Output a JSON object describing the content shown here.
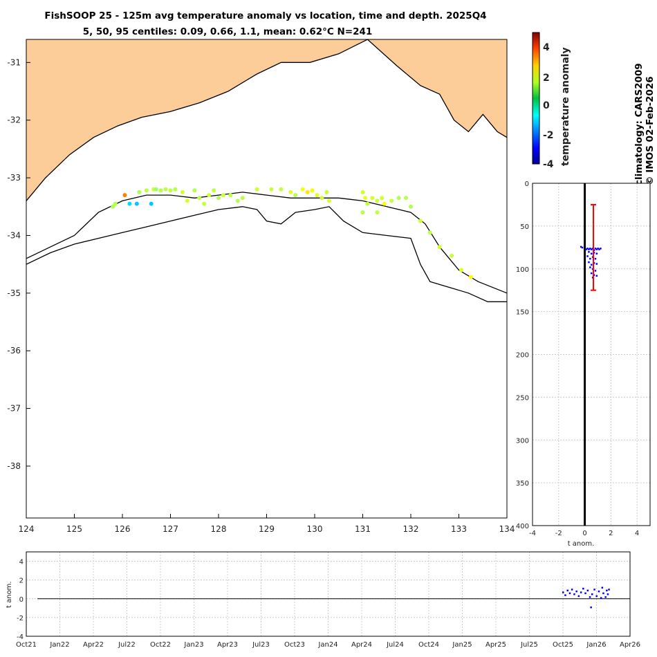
{
  "figure": {
    "title_line1": "FishSOOP 25 - 125m avg temperature anomaly vs location, time and depth. 2025Q4",
    "title_line2": "5, 50, 95 centiles: 0.09, 0.66, 1.1, mean: 0.62°C N=241",
    "right_note_1": "climatology: CARS2009",
    "right_note_2": "© IMOS 02-Feb-2026",
    "colorbar_label": "temperature anomaly",
    "colorbar_ticks": [
      "4",
      "2",
      "0",
      "-2",
      "-4"
    ],
    "colors": {
      "land": "#fccc99",
      "mean_line": "#000000",
      "error_bar": "#ff0000",
      "profile_points": "#0000ff"
    }
  },
  "chart_data": [
    {
      "type": "scatter",
      "name": "map",
      "xlim": [
        124,
        134
      ],
      "ylim": [
        -38.9,
        -30.6
      ],
      "xticks": [
        "124",
        "125",
        "126",
        "127",
        "128",
        "129",
        "130",
        "131",
        "132",
        "133",
        "134"
      ],
      "yticks": [
        "-31",
        "-32",
        "-33",
        "-34",
        "-35",
        "-36",
        "-37",
        "-38"
      ],
      "coast": [
        [
          124,
          -33.4
        ],
        [
          124.4,
          -33.0
        ],
        [
          124.9,
          -32.6
        ],
        [
          125.4,
          -32.3
        ],
        [
          125.9,
          -32.1
        ],
        [
          126.4,
          -31.95
        ],
        [
          127,
          -31.85
        ],
        [
          127.6,
          -31.7
        ],
        [
          128.2,
          -31.5
        ],
        [
          128.8,
          -31.2
        ],
        [
          129.3,
          -31.0
        ],
        [
          129.9,
          -31.0
        ],
        [
          130.5,
          -30.85
        ],
        [
          131.1,
          -30.6
        ],
        [
          131.7,
          -31.05
        ],
        [
          132.2,
          -31.4
        ],
        [
          132.6,
          -31.55
        ],
        [
          132.9,
          -32.0
        ],
        [
          133.2,
          -32.2
        ],
        [
          133.5,
          -31.9
        ],
        [
          133.8,
          -32.2
        ],
        [
          134,
          -32.3
        ]
      ],
      "isobath_shelf": [
        [
          124,
          -34.4
        ],
        [
          124.5,
          -34.2
        ],
        [
          125,
          -34.0
        ],
        [
          125.5,
          -33.6
        ],
        [
          126,
          -33.4
        ],
        [
          126.5,
          -33.3
        ],
        [
          127,
          -33.3
        ],
        [
          127.5,
          -33.35
        ],
        [
          128,
          -33.3
        ],
        [
          128.5,
          -33.25
        ],
        [
          129,
          -33.3
        ],
        [
          129.5,
          -33.35
        ],
        [
          130,
          -33.35
        ],
        [
          130.5,
          -33.35
        ],
        [
          131,
          -33.4
        ],
        [
          131.5,
          -33.5
        ],
        [
          132,
          -33.6
        ],
        [
          132.3,
          -33.8
        ],
        [
          132.6,
          -34.2
        ],
        [
          133,
          -34.6
        ],
        [
          133.4,
          -34.8
        ],
        [
          134,
          -35.0
        ]
      ],
      "isobath_slope": [
        [
          124,
          -34.5
        ],
        [
          124.5,
          -34.3
        ],
        [
          125,
          -34.15
        ],
        [
          125.5,
          -34.05
        ],
        [
          126,
          -33.95
        ],
        [
          126.5,
          -33.85
        ],
        [
          127,
          -33.75
        ],
        [
          127.5,
          -33.65
        ],
        [
          128,
          -33.55
        ],
        [
          128.5,
          -33.5
        ],
        [
          128.8,
          -33.55
        ],
        [
          129,
          -33.75
        ],
        [
          129.3,
          -33.8
        ],
        [
          129.6,
          -33.6
        ],
        [
          130,
          -33.55
        ],
        [
          130.3,
          -33.5
        ],
        [
          130.6,
          -33.75
        ],
        [
          131,
          -33.95
        ],
        [
          131.5,
          -34.0
        ],
        [
          132,
          -34.05
        ],
        [
          132.2,
          -34.5
        ],
        [
          132.4,
          -34.8
        ],
        [
          132.8,
          -34.9
        ],
        [
          133.2,
          -35.0
        ],
        [
          133.6,
          -35.15
        ],
        [
          134,
          -35.15
        ]
      ],
      "points": [
        [
          125.8,
          -33.5,
          0.4
        ],
        [
          125.85,
          -33.45,
          0.5
        ],
        [
          126.05,
          -33.3,
          2.5
        ],
        [
          126.15,
          -33.45,
          -1.6
        ],
        [
          126.3,
          -33.45,
          -1.8
        ],
        [
          126.35,
          -33.25,
          0.4
        ],
        [
          126.5,
          -33.22,
          0.6
        ],
        [
          126.6,
          -33.45,
          -1.8
        ],
        [
          126.65,
          -33.2,
          0.7
        ],
        [
          126.7,
          -33.2,
          0.3
        ],
        [
          126.8,
          -33.22,
          0.5
        ],
        [
          126.9,
          -33.2,
          0.6
        ],
        [
          127.0,
          -33.22,
          0.6
        ],
        [
          127.1,
          -33.2,
          0.5
        ],
        [
          127.25,
          -33.25,
          0.8
        ],
        [
          127.35,
          -33.4,
          0.9
        ],
        [
          127.5,
          -33.22,
          0.5
        ],
        [
          127.6,
          -33.35,
          0.6
        ],
        [
          127.7,
          -33.45,
          0.7
        ],
        [
          127.8,
          -33.3,
          0.8
        ],
        [
          127.9,
          -33.22,
          0.6
        ],
        [
          128.0,
          -33.35,
          0.5
        ],
        [
          128.1,
          -33.3,
          0.7
        ],
        [
          128.25,
          -33.3,
          0.6
        ],
        [
          128.4,
          -33.4,
          0.5
        ],
        [
          128.5,
          -33.35,
          0.6
        ],
        [
          128.8,
          -33.2,
          0.8
        ],
        [
          129.1,
          -33.2,
          0.7
        ],
        [
          129.3,
          -33.2,
          0.6
        ],
        [
          129.5,
          -33.25,
          0.9
        ],
        [
          129.6,
          -33.3,
          0.5
        ],
        [
          129.75,
          -33.2,
          1.2
        ],
        [
          129.85,
          -33.25,
          1.5
        ],
        [
          129.95,
          -33.22,
          1.3
        ],
        [
          130.05,
          -33.3,
          1.0
        ],
        [
          130.15,
          -33.35,
          0.8
        ],
        [
          130.25,
          -33.25,
          0.7
        ],
        [
          130.3,
          -33.4,
          0.9
        ],
        [
          131.0,
          -33.25,
          0.8
        ],
        [
          131.05,
          -33.35,
          1.0
        ],
        [
          131.1,
          -33.45,
          0.6
        ],
        [
          131.2,
          -33.35,
          0.9
        ],
        [
          131.3,
          -33.4,
          0.7
        ],
        [
          131.4,
          -33.35,
          0.8
        ],
        [
          131.45,
          -33.45,
          1.2
        ],
        [
          131.6,
          -33.4,
          0.7
        ],
        [
          131.75,
          -33.35,
          0.5
        ],
        [
          131.9,
          -33.35,
          0.6
        ],
        [
          131.0,
          -33.6,
          0.5
        ],
        [
          131.3,
          -33.6,
          0.6
        ],
        [
          132.0,
          -33.5,
          0.5
        ],
        [
          132.2,
          -33.75,
          0.7
        ],
        [
          132.4,
          -33.95,
          0.6
        ],
        [
          132.6,
          -34.2,
          0.8
        ],
        [
          132.85,
          -34.35,
          0.7
        ],
        [
          133.05,
          -34.6,
          0.9
        ],
        [
          133.25,
          -34.72,
          1.3
        ]
      ]
    },
    {
      "type": "scatter",
      "name": "depth_profile",
      "xlabel": "t anom.",
      "xlim": [
        -4,
        5
      ],
      "ylim": [
        0,
        400
      ],
      "xticks": [
        "-4",
        "-2",
        "0",
        "2",
        "4"
      ],
      "yticks": [
        "0",
        "50",
        "100",
        "150",
        "200",
        "250",
        "300",
        "350",
        "400"
      ],
      "mean_anomaly": 0.62,
      "errorbar": {
        "x": 0.66,
        "y_min": 25,
        "y_max": 125
      },
      "points": [
        [
          -0.3,
          74
        ],
        [
          -0.2,
          75
        ],
        [
          0.1,
          77
        ],
        [
          0.2,
          76
        ],
        [
          0.3,
          77
        ],
        [
          0.4,
          76
        ],
        [
          0.5,
          77
        ],
        [
          0.6,
          76
        ],
        [
          0.7,
          78
        ],
        [
          0.8,
          76
        ],
        [
          0.9,
          77
        ],
        [
          1.0,
          76
        ],
        [
          1.1,
          77
        ],
        [
          1.2,
          76
        ],
        [
          0.3,
          80
        ],
        [
          0.5,
          82
        ],
        [
          0.7,
          81
        ],
        [
          0.9,
          82
        ],
        [
          0.2,
          85
        ],
        [
          0.4,
          88
        ],
        [
          0.6,
          86
        ],
        [
          0.8,
          88
        ],
        [
          0.3,
          92
        ],
        [
          0.5,
          95
        ],
        [
          0.7,
          93
        ],
        [
          0.9,
          94
        ],
        [
          0.4,
          98
        ],
        [
          0.6,
          100
        ],
        [
          0.8,
          102
        ],
        [
          0.5,
          105
        ],
        [
          0.7,
          107
        ],
        [
          0.9,
          108
        ],
        [
          0.6,
          110
        ]
      ]
    },
    {
      "type": "scatter",
      "name": "time_series",
      "ylabel": "t anom.",
      "xlim": [
        0,
        54
      ],
      "ylim": [
        -4,
        5
      ],
      "xticks": [
        "Oct21",
        "Jan22",
        "Apr22",
        "Jul22",
        "Oct22",
        "Jan23",
        "Apr23",
        "Jul23",
        "Oct23",
        "Jan24",
        "Apr24",
        "Jul24",
        "Oct24",
        "Jan25",
        "Apr25",
        "Jul25",
        "Oct25",
        "Jan26",
        "Apr26"
      ],
      "yticks": [
        "4",
        "2",
        "0",
        "-2",
        "-4"
      ],
      "points": [
        [
          48.0,
          0.7
        ],
        [
          48.2,
          0.4
        ],
        [
          48.4,
          0.9
        ],
        [
          48.6,
          0.6
        ],
        [
          48.8,
          1.0
        ],
        [
          49.0,
          0.5
        ],
        [
          49.2,
          0.8
        ],
        [
          49.4,
          0.3
        ],
        [
          49.6,
          0.7
        ],
        [
          49.8,
          1.1
        ],
        [
          50.0,
          0.6
        ],
        [
          50.2,
          0.9
        ],
        [
          50.4,
          0.2
        ],
        [
          50.5,
          -0.9
        ],
        [
          50.6,
          0.5
        ],
        [
          50.8,
          1.0
        ],
        [
          51.0,
          0.3
        ],
        [
          51.2,
          0.8
        ],
        [
          51.4,
          0.1
        ],
        [
          51.5,
          1.2
        ],
        [
          51.6,
          0.6
        ],
        [
          51.8,
          0.2
        ],
        [
          51.9,
          0.9
        ],
        [
          52.0,
          0.5
        ],
        [
          52.1,
          1.0
        ]
      ]
    }
  ]
}
